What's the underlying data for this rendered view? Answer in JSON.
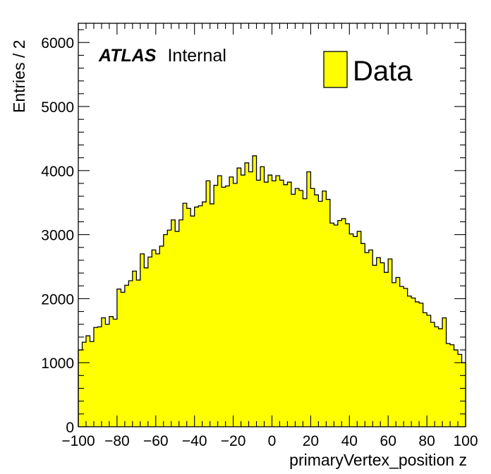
{
  "chart_data": {
    "type": "bar",
    "title": "",
    "xlabel": "primaryVertex_position z",
    "ylabel": "Entries / 2",
    "xlim": [
      -100,
      100
    ],
    "ylim": [
      0,
      6300
    ],
    "bin_width": 2,
    "x_ticks": [
      -100,
      -80,
      -60,
      -40,
      -20,
      0,
      20,
      40,
      60,
      80,
      100
    ],
    "x_tick_labels": [
      "−100",
      "−80",
      "−60",
      "−40",
      "−20",
      "0",
      "20",
      "40",
      "60",
      "80",
      "100"
    ],
    "y_ticks": [
      0,
      1000,
      2000,
      3000,
      4000,
      5000,
      6000
    ],
    "y_tick_labels": [
      "0",
      "1000",
      "2000",
      "3000",
      "4000",
      "5000",
      "6000"
    ],
    "grid": false,
    "fill_color": "#ffff00",
    "line_color": "#000000",
    "legend": {
      "position": "top-right",
      "entries": [
        {
          "name": "Data"
        }
      ]
    },
    "annotation": {
      "experiment": "ATLAS",
      "status": "Internal"
    },
    "series": [
      {
        "name": "Data",
        "x_bin_low_edges": [
          -100,
          -98,
          -96,
          -94,
          -92,
          -90,
          -88,
          -86,
          -84,
          -82,
          -80,
          -78,
          -76,
          -74,
          -72,
          -70,
          -68,
          -66,
          -64,
          -62,
          -60,
          -58,
          -56,
          -54,
          -52,
          -50,
          -48,
          -46,
          -44,
          -42,
          -40,
          -38,
          -36,
          -34,
          -32,
          -30,
          -28,
          -26,
          -24,
          -22,
          -20,
          -18,
          -16,
          -14,
          -12,
          -10,
          -8,
          -6,
          -4,
          -2,
          0,
          2,
          4,
          6,
          8,
          10,
          12,
          14,
          16,
          18,
          20,
          22,
          24,
          26,
          28,
          30,
          32,
          34,
          36,
          38,
          40,
          42,
          44,
          46,
          48,
          50,
          52,
          54,
          56,
          58,
          60,
          62,
          64,
          66,
          68,
          70,
          72,
          74,
          76,
          78,
          80,
          82,
          84,
          86,
          88,
          90,
          92,
          94,
          96,
          98
        ],
        "values": [
          1200,
          1320,
          1420,
          1330,
          1550,
          1560,
          1700,
          1600,
          1720,
          1680,
          2150,
          2100,
          2210,
          2280,
          2430,
          2290,
          2700,
          2480,
          2650,
          2760,
          2700,
          2820,
          3000,
          3070,
          3230,
          3050,
          3230,
          3490,
          3410,
          3290,
          3430,
          3450,
          3510,
          3840,
          3480,
          3770,
          3920,
          3740,
          3760,
          3900,
          3800,
          4040,
          3930,
          4120,
          3980,
          4230,
          3850,
          4060,
          3820,
          3930,
          3840,
          3920,
          3850,
          3780,
          3820,
          3630,
          3720,
          3690,
          3560,
          3980,
          3720,
          3620,
          3520,
          3680,
          3550,
          3180,
          3150,
          3220,
          3250,
          3170,
          3010,
          2970,
          3050,
          2860,
          2720,
          2760,
          2520,
          2640,
          2560,
          2410,
          2620,
          2250,
          2330,
          2190,
          2160,
          2040,
          2010,
          1950,
          1930,
          1780,
          1740,
          1630,
          1560,
          1530,
          1700,
          1300,
          1280,
          1200,
          1130,
          1000
        ]
      }
    ]
  }
}
